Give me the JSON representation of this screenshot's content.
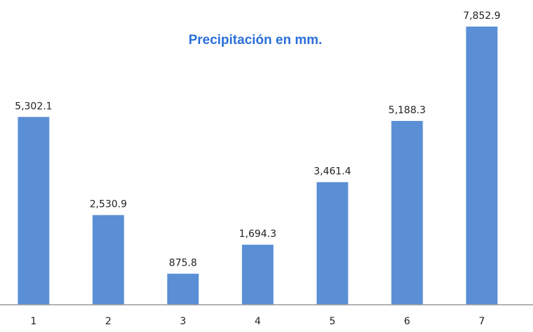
{
  "chart_data": {
    "type": "bar",
    "title": "Precipitación en mm.",
    "categories": [
      "1",
      "2",
      "3",
      "4",
      "5",
      "6",
      "7"
    ],
    "values": [
      5302.1,
      2530.9,
      875.8,
      1694.3,
      3461.4,
      5188.3,
      7852.9
    ],
    "value_labels": [
      "5,302.1",
      "2,530.9",
      "875.8",
      "1,694.3",
      "3,461.4",
      "5,188.3",
      "7,852.9"
    ],
    "xlabel": "",
    "ylabel": "",
    "ylim": [
      0,
      8000
    ],
    "grid": false,
    "legend": "none",
    "bar_color": "#5a8fd6",
    "title_color": "#2a6fd8"
  }
}
